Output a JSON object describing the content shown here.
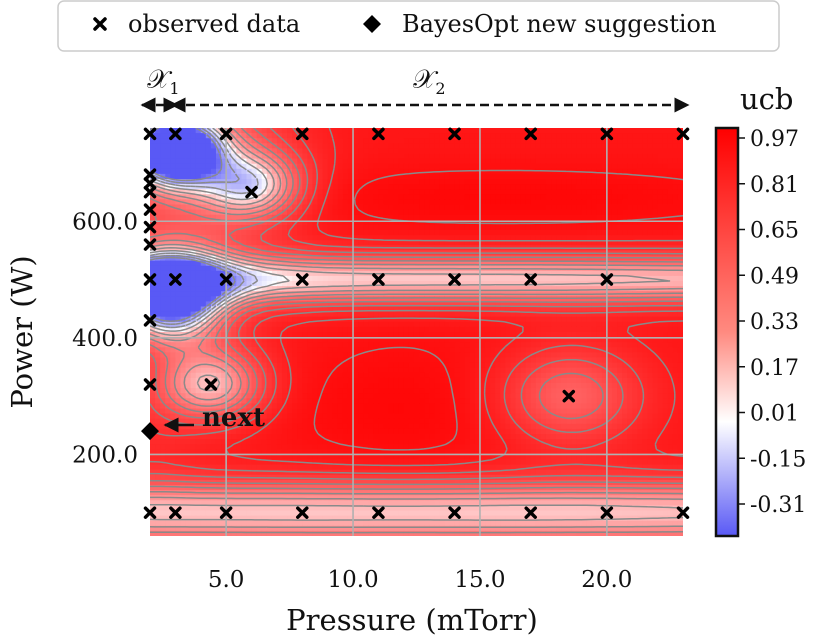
{
  "chart_data": {
    "type": "heatmap",
    "xlabel": "Pressure (mTorr)",
    "ylabel": "Power (W)",
    "xlim": [
      2.0,
      23.0
    ],
    "ylim": [
      60,
      760
    ],
    "x_ticks": [
      {
        "value": 5.0,
        "label": "5.0"
      },
      {
        "value": 10.0,
        "label": "10.0"
      },
      {
        "value": 15.0,
        "label": "15.0"
      },
      {
        "value": 20.0,
        "label": "20.0"
      }
    ],
    "y_ticks": [
      {
        "value": 200.0,
        "label": "200.0"
      },
      {
        "value": 400.0,
        "label": "400.0"
      },
      {
        "value": 600.0,
        "label": "600.0"
      }
    ],
    "grid": true,
    "colorbar": {
      "title": "ucb",
      "min": -0.39,
      "max": 1.0,
      "ticks": [
        "0.97",
        "0.81",
        "0.65",
        "0.49",
        "0.33",
        "0.17",
        "0.01",
        "-0.15",
        "-0.31"
      ]
    },
    "legend": {
      "placement": "top",
      "entries": [
        {
          "marker": "x",
          "label": "observed data"
        },
        {
          "marker": "diamond",
          "label": "BayesOpt new suggestion"
        }
      ]
    },
    "regions": [
      {
        "label": "𝒳",
        "subscript": "1",
        "from": 2.0,
        "to": 3.0
      },
      {
        "label": "𝒳",
        "subscript": "2",
        "from": 3.0,
        "to": 23.0
      }
    ],
    "observed": [
      [
        2,
        750
      ],
      [
        3,
        750
      ],
      [
        5,
        750
      ],
      [
        8,
        750
      ],
      [
        11,
        750
      ],
      [
        14,
        750
      ],
      [
        17,
        750
      ],
      [
        20,
        750
      ],
      [
        23,
        750
      ],
      [
        2,
        680
      ],
      [
        2,
        665
      ],
      [
        2,
        650
      ],
      [
        2,
        620
      ],
      [
        2,
        590
      ],
      [
        2,
        560
      ],
      [
        6,
        650
      ],
      [
        2,
        500
      ],
      [
        3,
        500
      ],
      [
        5,
        500
      ],
      [
        8,
        500
      ],
      [
        11,
        500
      ],
      [
        14,
        500
      ],
      [
        17,
        500
      ],
      [
        20,
        500
      ],
      [
        2,
        430
      ],
      [
        2,
        320
      ],
      [
        4.4,
        320
      ],
      [
        18.5,
        300
      ],
      [
        2,
        100
      ],
      [
        3,
        100
      ],
      [
        5,
        100
      ],
      [
        8,
        100
      ],
      [
        11,
        100
      ],
      [
        14,
        100
      ],
      [
        17,
        100
      ],
      [
        20,
        100
      ],
      [
        23,
        100
      ]
    ],
    "suggestion": {
      "x": 2.0,
      "y": 240,
      "label": "next"
    },
    "surface": {
      "base": 0.85,
      "bumps": [
        {
          "x": 3.0,
          "y": 720,
          "sx": 1.2,
          "sy": 38,
          "a": -1.45
        },
        {
          "x": 3.5,
          "y": 735,
          "sx": 2.6,
          "sy": 75,
          "a": -0.45
        },
        {
          "x": 2.8,
          "y": 470,
          "sx": 1.4,
          "sy": 50,
          "a": -1.35
        },
        {
          "x": 3.0,
          "y": 560,
          "sx": 2.8,
          "sy": 110,
          "a": -0.25
        },
        {
          "x": 4.4,
          "y": 320,
          "sx": 1.5,
          "sy": 45,
          "a": -0.75
        },
        {
          "x": 6.0,
          "y": 660,
          "sx": 1.4,
          "sy": 40,
          "a": -0.75
        },
        {
          "x": 12.0,
          "y": 500,
          "sx": 30.0,
          "sy": 30,
          "a": -0.8
        },
        {
          "x": 12.0,
          "y": 100,
          "sx": 40.0,
          "sy": 40,
          "a": -0.8
        },
        {
          "x": 18.5,
          "y": 300,
          "sx": 2.0,
          "sy": 60,
          "a": -0.45
        },
        {
          "x": 12.0,
          "y": 280,
          "sx": 3.5,
          "sy": 90,
          "a": 0.1
        },
        {
          "x": 16.0,
          "y": 640,
          "sx": 8.0,
          "sy": 40,
          "a": 0.1
        },
        {
          "x": 2.0,
          "y": 240,
          "sx": 1.3,
          "sy": 70,
          "a": -0.1
        }
      ],
      "contour_levels": [
        -0.3,
        -0.2,
        -0.1,
        0.0,
        0.1,
        0.2,
        0.3,
        0.4,
        0.5,
        0.6,
        0.7,
        0.8,
        0.9
      ]
    }
  }
}
